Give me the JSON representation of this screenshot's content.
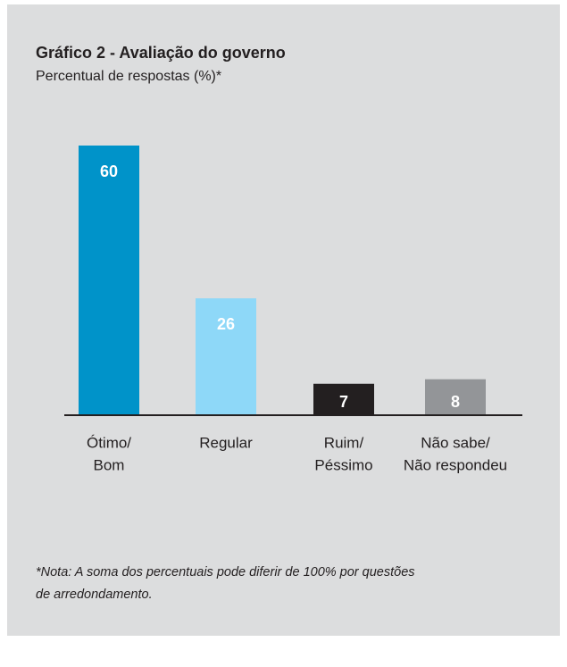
{
  "chart_data": {
    "type": "bar",
    "title": "Gráfico 2 - Avaliação do governo",
    "subtitle": "Percentual de respostas (%)*",
    "categories": [
      [
        "Ótimo/",
        "Bom"
      ],
      [
        "Regular"
      ],
      [
        "Ruim/",
        "Péssimo"
      ],
      [
        "Não sabe/",
        "Não respondeu"
      ]
    ],
    "values": [
      60,
      26,
      7,
      8
    ],
    "colors": [
      "#0093c9",
      "#8ed8f8",
      "#231f20",
      "#939598"
    ],
    "note": [
      "*Nota: A soma dos percentuais pode diferir de 100% por questões",
      "de arredondamento."
    ]
  }
}
